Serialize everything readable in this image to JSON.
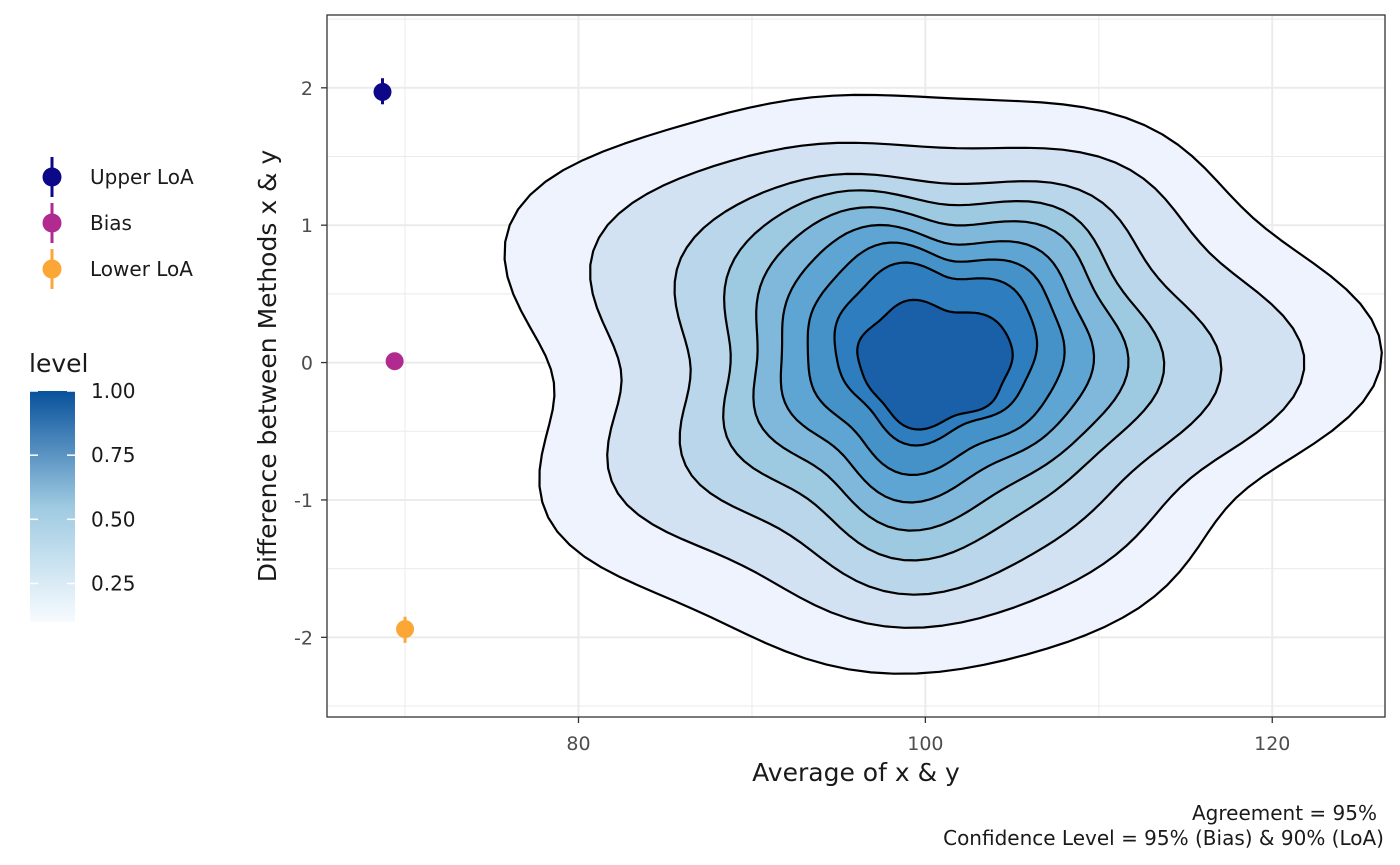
{
  "chart_data": {
    "type": "scatter",
    "subtype": "bland-altman density contour",
    "xlabel": "Average of x & y",
    "ylabel": "Difference between Methods x & y",
    "xlim": [
      65.5,
      126.5
    ],
    "ylim": [
      -2.58,
      2.53
    ],
    "x_ticks": [
      80,
      100,
      120
    ],
    "y_ticks": [
      2,
      1,
      0,
      -1,
      -2
    ],
    "grid": true,
    "points": [
      {
        "name": "Upper LoA",
        "x": 68.7,
        "y": 1.97,
        "err_low": 1.88,
        "err_high": 2.07,
        "color": "#0d0887"
      },
      {
        "name": "Bias",
        "x": 69.4,
        "y": 0.01,
        "err_low": -0.02,
        "err_high": 0.03,
        "color": "#b12a90"
      },
      {
        "name": "Lower LoA",
        "x": 70.0,
        "y": -1.94,
        "err_low": -2.04,
        "err_high": -1.85,
        "color": "#fca636"
      }
    ],
    "density": {
      "center_x": 99.5,
      "center_y": -0.05,
      "levels": [
        0.1,
        0.2,
        0.3,
        0.4,
        0.5,
        0.6,
        0.7,
        0.8,
        0.9
      ],
      "fill_colors": [
        "#eef3fd",
        "#d3e2f3",
        "#bad6eb",
        "#9ecae1",
        "#80b8dc",
        "#5fa5d3",
        "#4492c8",
        "#2e7dbf",
        "#1a60a8"
      ],
      "contours": [
        {
          "rx": 23.9,
          "ry": 2.1,
          "ox": 0.0,
          "oy": 0.0
        },
        {
          "rx": 19.7,
          "ry": 1.75,
          "ox": 0.4,
          "oy": 0.0
        },
        {
          "rx": 15.3,
          "ry": 1.5,
          "ox": 0.7,
          "oy": 0.0
        },
        {
          "rx": 12.5,
          "ry": 1.3,
          "ox": 0.7,
          "oy": 0.05
        },
        {
          "rx": 10.7,
          "ry": 1.12,
          "ox": 0.8,
          "oy": 0.08
        },
        {
          "rx": 9.0,
          "ry": 0.95,
          "ox": 0.8,
          "oy": 0.1
        },
        {
          "rx": 7.4,
          "ry": 0.79,
          "ox": 0.9,
          "oy": 0.12
        },
        {
          "rx": 5.8,
          "ry": 0.62,
          "ox": 1.0,
          "oy": 0.14
        },
        {
          "rx": 4.4,
          "ry": 0.44,
          "ox": 1.0,
          "oy": 0.05
        }
      ]
    }
  },
  "legend_points": {
    "items": [
      {
        "label": "Upper LoA",
        "color": "#0d0887"
      },
      {
        "label": "Bias",
        "color": "#b12a90"
      },
      {
        "label": "Lower LoA",
        "color": "#fca636"
      }
    ]
  },
  "legend_level": {
    "title": "level",
    "range": [
      0.1,
      1.0
    ],
    "ticks": [
      {
        "value": 1.0,
        "label": "1.00"
      },
      {
        "value": 0.75,
        "label": "0.75"
      },
      {
        "value": 0.5,
        "label": "0.50"
      },
      {
        "value": 0.25,
        "label": "0.25"
      }
    ],
    "color_low": "#f7fbff",
    "color_high": "#08519c"
  },
  "caption": {
    "line1": "Agreement = 95%",
    "line2": "Confidence Level = 95% (Bias) & 90% (LoA)"
  }
}
